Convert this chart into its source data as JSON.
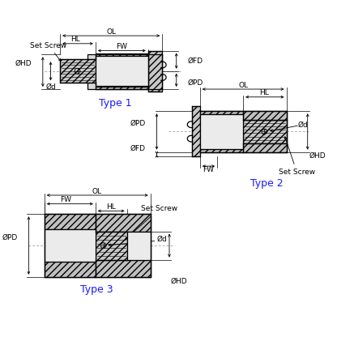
{
  "bg_color": "#ffffff",
  "line_color": "#000000",
  "blue_color": "#1a1aff",
  "dim_fs": 6.5,
  "type_fs": 9,
  "hatch_color": "#aaaaaa",
  "light_fill": "#e8e8e8",
  "mid_fill": "#d0d0d0",
  "type1_label": "Type 1",
  "type2_label": "Type 2",
  "type3_label": "Type 3"
}
